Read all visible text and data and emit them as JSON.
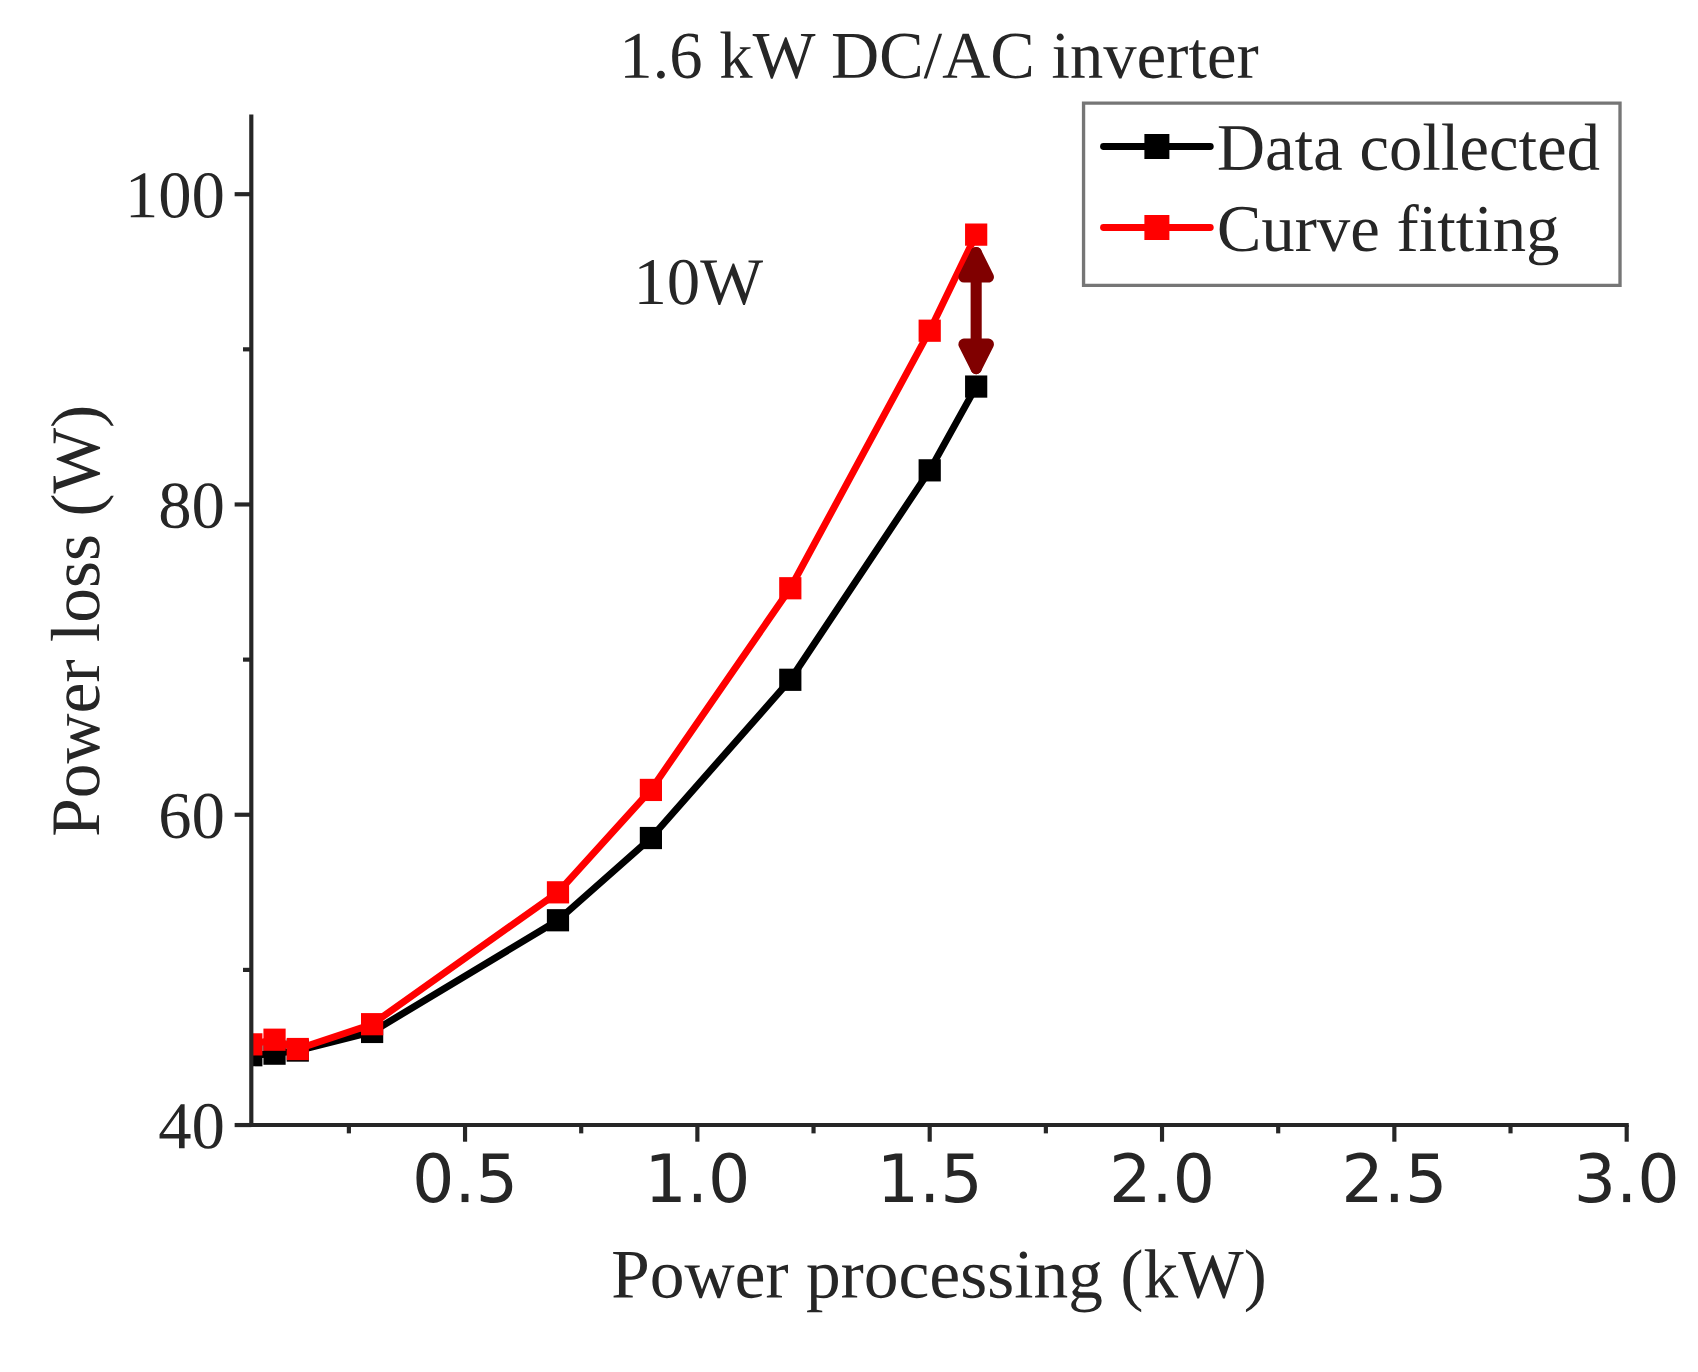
{
  "chart_data": {
    "type": "line",
    "title": "1.6 kW DC/AC inverter",
    "xlabel": "Power processing (kW)",
    "ylabel": "Power loss (W)",
    "x": [
      0.04,
      0.09,
      0.14,
      0.3,
      0.7,
      0.9,
      1.2,
      1.5,
      1.6
    ],
    "series": [
      {
        "name": "Data collected",
        "color": "#000000",
        "values": [
          44.5,
          44.6,
          44.8,
          46.0,
          53.2,
          58.5,
          68.7,
          82.2,
          87.6
        ]
      },
      {
        "name": "Curve fitting",
        "color": "#ff0000",
        "values": [
          45.2,
          45.5,
          44.9,
          46.5,
          55.0,
          61.6,
          74.6,
          91.2,
          97.4
        ]
      }
    ],
    "annotations": [
      "10W"
    ],
    "xlim": [
      0.04,
      3.0
    ],
    "ylim": [
      40,
      105
    ],
    "xticks": [
      0.5,
      {
        "value": 1,
        "label": "1.0"
      },
      1.5,
      {
        "value": 2,
        "label": "2.0"
      },
      2.5,
      {
        "value": 3,
        "label": "3.0"
      }
    ],
    "yticks": [
      40,
      60,
      80,
      100
    ],
    "grid": false,
    "legend": "top right",
    "marker": "square",
    "line_style": "solid"
  }
}
